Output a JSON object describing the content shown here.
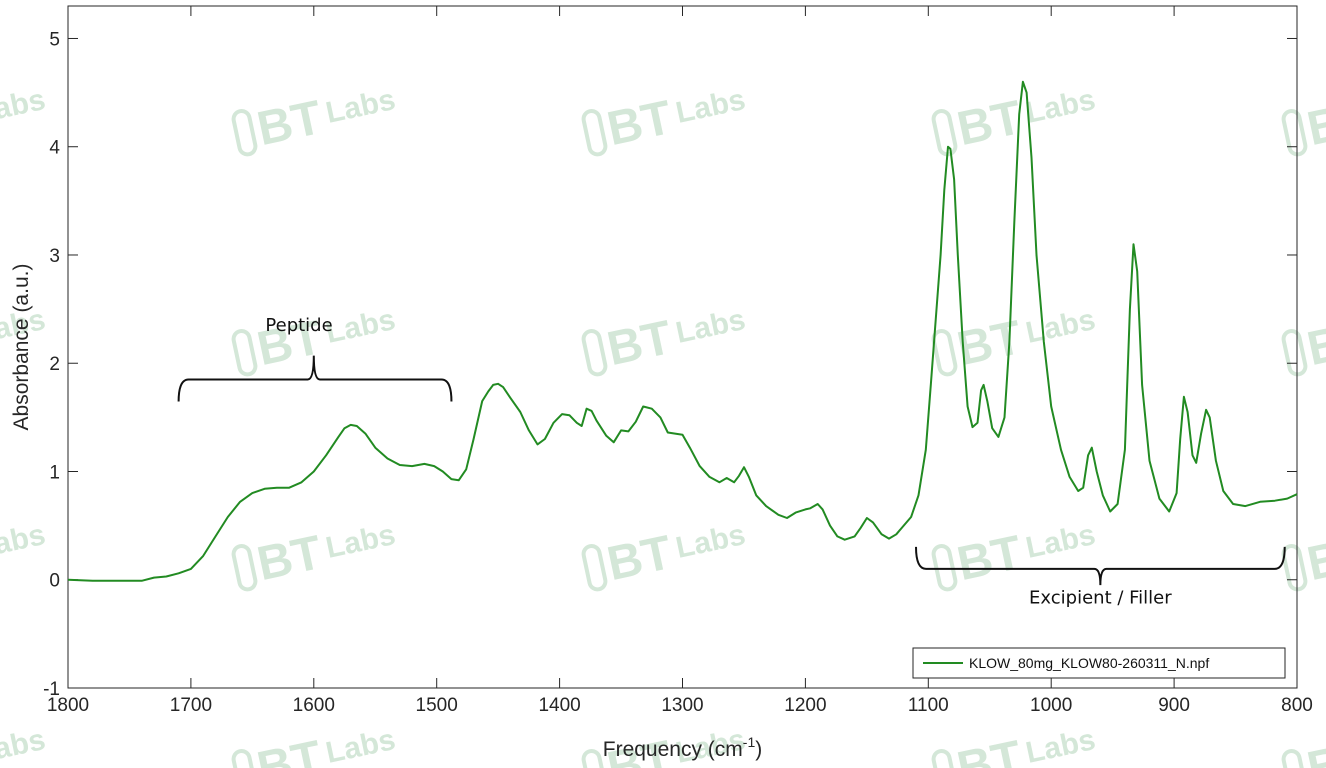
{
  "chart_data": {
    "type": "line",
    "xlabel": "Frequency (cm",
    "xlabel_sup": "-1",
    "xlabel_tail": ")",
    "ylabel": "Absorbance (a.u.)",
    "xlim": [
      1800,
      800
    ],
    "x_reversed": true,
    "ylim": [
      -1,
      5.3
    ],
    "xticks": [
      1800,
      1700,
      1600,
      1500,
      1400,
      1300,
      1200,
      1100,
      1000,
      900,
      800
    ],
    "yticks": [
      -1,
      0,
      1,
      2,
      3,
      4,
      5
    ],
    "grid": false,
    "legend_position": "bottom-right",
    "series": [
      {
        "name": "KLOW_80mg_KLOW80-260311_N.npf",
        "color": "#228b22",
        "points": [
          [
            1800,
            0.0
          ],
          [
            1780,
            -0.01
          ],
          [
            1760,
            -0.01
          ],
          [
            1740,
            -0.01
          ],
          [
            1730,
            0.02
          ],
          [
            1720,
            0.03
          ],
          [
            1710,
            0.06
          ],
          [
            1700,
            0.1
          ],
          [
            1690,
            0.22
          ],
          [
            1680,
            0.4
          ],
          [
            1670,
            0.58
          ],
          [
            1660,
            0.72
          ],
          [
            1650,
            0.8
          ],
          [
            1640,
            0.84
          ],
          [
            1630,
            0.85
          ],
          [
            1620,
            0.85
          ],
          [
            1610,
            0.9
          ],
          [
            1600,
            1.0
          ],
          [
            1590,
            1.15
          ],
          [
            1580,
            1.32
          ],
          [
            1575,
            1.4
          ],
          [
            1570,
            1.43
          ],
          [
            1565,
            1.42
          ],
          [
            1558,
            1.35
          ],
          [
            1550,
            1.22
          ],
          [
            1540,
            1.12
          ],
          [
            1530,
            1.06
          ],
          [
            1520,
            1.05
          ],
          [
            1510,
            1.07
          ],
          [
            1502,
            1.05
          ],
          [
            1495,
            1.0
          ],
          [
            1488,
            0.93
          ],
          [
            1482,
            0.92
          ],
          [
            1476,
            1.02
          ],
          [
            1470,
            1.3
          ],
          [
            1463,
            1.65
          ],
          [
            1458,
            1.74
          ],
          [
            1454,
            1.8
          ],
          [
            1450,
            1.81
          ],
          [
            1446,
            1.78
          ],
          [
            1440,
            1.68
          ],
          [
            1432,
            1.55
          ],
          [
            1425,
            1.38
          ],
          [
            1418,
            1.25
          ],
          [
            1412,
            1.3
          ],
          [
            1405,
            1.45
          ],
          [
            1398,
            1.53
          ],
          [
            1392,
            1.52
          ],
          [
            1386,
            1.45
          ],
          [
            1382,
            1.42
          ],
          [
            1378,
            1.58
          ],
          [
            1374,
            1.56
          ],
          [
            1370,
            1.47
          ],
          [
            1362,
            1.33
          ],
          [
            1356,
            1.27
          ],
          [
            1350,
            1.38
          ],
          [
            1344,
            1.37
          ],
          [
            1338,
            1.46
          ],
          [
            1332,
            1.6
          ],
          [
            1325,
            1.58
          ],
          [
            1318,
            1.5
          ],
          [
            1312,
            1.36
          ],
          [
            1306,
            1.35
          ],
          [
            1300,
            1.34
          ],
          [
            1294,
            1.22
          ],
          [
            1286,
            1.05
          ],
          [
            1278,
            0.95
          ],
          [
            1270,
            0.9
          ],
          [
            1264,
            0.94
          ],
          [
            1258,
            0.9
          ],
          [
            1254,
            0.96
          ],
          [
            1250,
            1.04
          ],
          [
            1246,
            0.95
          ],
          [
            1240,
            0.78
          ],
          [
            1232,
            0.68
          ],
          [
            1222,
            0.6
          ],
          [
            1215,
            0.57
          ],
          [
            1208,
            0.62
          ],
          [
            1200,
            0.65
          ],
          [
            1196,
            0.66
          ],
          [
            1190,
            0.7
          ],
          [
            1186,
            0.65
          ],
          [
            1180,
            0.5
          ],
          [
            1174,
            0.4
          ],
          [
            1168,
            0.37
          ],
          [
            1160,
            0.4
          ],
          [
            1155,
            0.48
          ],
          [
            1150,
            0.57
          ],
          [
            1145,
            0.53
          ],
          [
            1138,
            0.42
          ],
          [
            1132,
            0.38
          ],
          [
            1126,
            0.42
          ],
          [
            1120,
            0.5
          ],
          [
            1114,
            0.58
          ],
          [
            1108,
            0.78
          ],
          [
            1102,
            1.2
          ],
          [
            1098,
            1.8
          ],
          [
            1094,
            2.4
          ],
          [
            1090,
            3.0
          ],
          [
            1087,
            3.6
          ],
          [
            1084,
            4.0
          ],
          [
            1082,
            3.98
          ],
          [
            1079,
            3.7
          ],
          [
            1076,
            3.0
          ],
          [
            1072,
            2.2
          ],
          [
            1068,
            1.6
          ],
          [
            1064,
            1.41
          ],
          [
            1060,
            1.45
          ],
          [
            1057,
            1.75
          ],
          [
            1055,
            1.8
          ],
          [
            1052,
            1.65
          ],
          [
            1048,
            1.4
          ],
          [
            1043,
            1.32
          ],
          [
            1038,
            1.5
          ],
          [
            1034,
            2.2
          ],
          [
            1030,
            3.3
          ],
          [
            1026,
            4.3
          ],
          [
            1023,
            4.6
          ],
          [
            1020,
            4.5
          ],
          [
            1016,
            3.9
          ],
          [
            1012,
            3.0
          ],
          [
            1006,
            2.2
          ],
          [
            1000,
            1.6
          ],
          [
            992,
            1.2
          ],
          [
            985,
            0.95
          ],
          [
            978,
            0.82
          ],
          [
            974,
            0.85
          ],
          [
            970,
            1.15
          ],
          [
            967,
            1.22
          ],
          [
            963,
            1.0
          ],
          [
            958,
            0.78
          ],
          [
            952,
            0.63
          ],
          [
            946,
            0.7
          ],
          [
            940,
            1.2
          ],
          [
            936,
            2.5
          ],
          [
            933,
            3.1
          ],
          [
            930,
            2.85
          ],
          [
            926,
            1.8
          ],
          [
            920,
            1.1
          ],
          [
            912,
            0.75
          ],
          [
            904,
            0.63
          ],
          [
            898,
            0.8
          ],
          [
            895,
            1.3
          ],
          [
            892,
            1.69
          ],
          [
            889,
            1.55
          ],
          [
            885,
            1.15
          ],
          [
            882,
            1.08
          ],
          [
            878,
            1.35
          ],
          [
            874,
            1.57
          ],
          [
            871,
            1.5
          ],
          [
            866,
            1.1
          ],
          [
            860,
            0.82
          ],
          [
            852,
            0.7
          ],
          [
            842,
            0.68
          ],
          [
            830,
            0.72
          ],
          [
            818,
            0.73
          ],
          [
            808,
            0.75
          ],
          [
            800,
            0.79
          ]
        ]
      }
    ],
    "annotations": [
      {
        "text": "Peptide",
        "bracket_from": 1710,
        "bracket_to": 1488,
        "bracket_y": 1.85,
        "bracket_tip": 1600,
        "tip_y": 2.07,
        "text_at": [
          1612,
          2.3
        ]
      },
      {
        "text": "Excipient / Filler",
        "bracket_from": 1110,
        "bracket_to": 810,
        "bracket_y": 0.1,
        "bracket_tip": 960,
        "tip_y": -0.05,
        "text_at": [
          960,
          -0.22
        ]
      }
    ]
  },
  "watermark": {
    "text_a": "BT",
    "text_b": "Labs",
    "color": "#a8cfb0"
  }
}
